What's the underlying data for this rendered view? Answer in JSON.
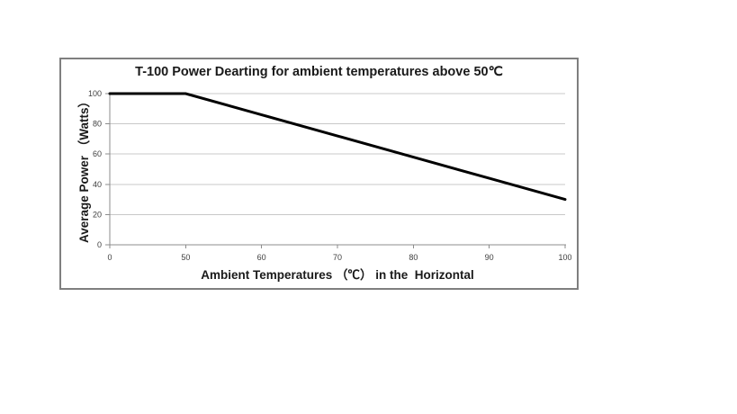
{
  "window": {
    "background": "#ffffff"
  },
  "chart": {
    "title": "T-100 Power Dearting for ambient temperatures above 50℃",
    "y_axis_title": "Average Power （Watts）",
    "x_axis_title": "Ambient Temperatures （℃） in the  Horizontal"
  },
  "chart_data": {
    "type": "line",
    "title": "T-100 Power Dearting for ambient temperatures above 50℃",
    "categories": [
      "0",
      "50",
      "60",
      "70",
      "80",
      "90",
      "100"
    ],
    "series": [
      {
        "name": "Average Power (Watts)",
        "values": [
          100,
          100,
          86,
          72,
          58,
          44,
          30
        ]
      }
    ],
    "xlabel": "Ambient Temperatures （℃） in the  Horizontal",
    "ylabel": "Average Power （Watts）",
    "ylim": [
      0,
      100
    ],
    "y_ticks": [
      0,
      20,
      40,
      60,
      80,
      100
    ],
    "grid": true,
    "legend": false,
    "line_color": "#000000",
    "line_width": 3,
    "gridline_color": "#c8c8c8",
    "axis_color": "#8c8c8c",
    "tick_label_color": "#404040",
    "frame_border_color": "#7f7f7f"
  }
}
